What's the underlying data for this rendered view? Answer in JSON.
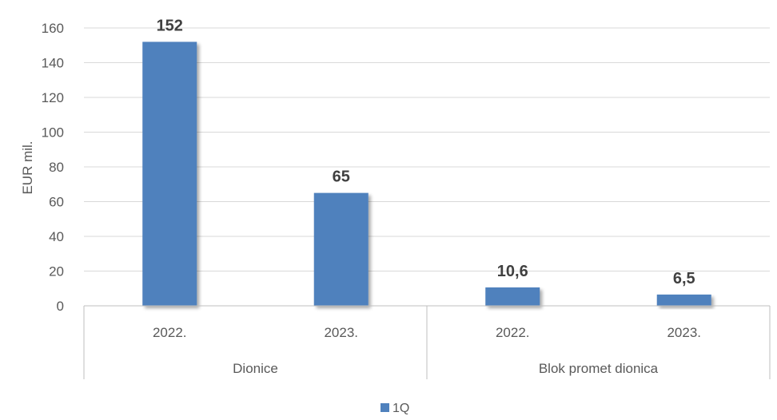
{
  "chart_data": {
    "type": "bar",
    "ylabel": "EUR mil.",
    "ylim": [
      0,
      160
    ],
    "yticks": [
      0,
      20,
      40,
      60,
      80,
      100,
      120,
      140,
      160
    ],
    "grid": true,
    "groups": [
      {
        "label": "Dionice",
        "categories": [
          "2022.",
          "2023."
        ]
      },
      {
        "label": "Blok promet dionica",
        "categories": [
          "2022.",
          "2023."
        ]
      }
    ],
    "series": [
      {
        "name": "1Q",
        "values": [
          152,
          65,
          10.6,
          6.5
        ],
        "labels": [
          "152",
          "65",
          "10,6",
          "6,5"
        ]
      }
    ],
    "legend": "bottom",
    "colors": {
      "bar": "#4f81bd",
      "grid": "#d9d9d9",
      "axis_text": "#595959"
    }
  }
}
